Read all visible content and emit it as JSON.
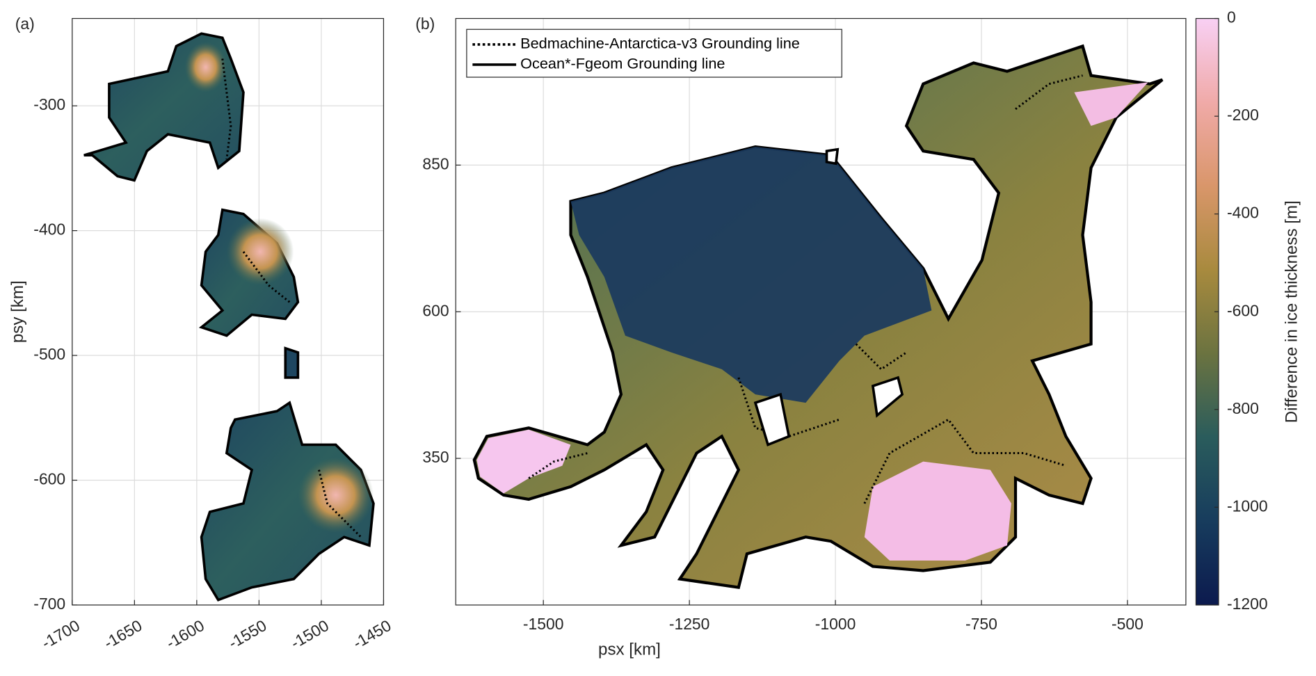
{
  "chart_data": [
    {
      "type": "map",
      "panel_label": "(a)",
      "ylabel": "psy [km]",
      "xlim": [
        -1700,
        -1450
      ],
      "ylim": [
        -700,
        -230
      ],
      "xticks": [
        -1700,
        -1650,
        -1600,
        -1550,
        -1500,
        -1450
      ],
      "xtick_rotation": -30,
      "yticks": [
        -300,
        -400,
        -500,
        -600,
        -700
      ],
      "grid": true
    },
    {
      "type": "map",
      "panel_label": "(b)",
      "xlabel": "psx [km]",
      "xlim": [
        -1650,
        -400
      ],
      "ylim": [
        100,
        1100
      ],
      "xticks": [
        -1500,
        -1250,
        -1000,
        -750,
        -500
      ],
      "yticks": [
        850,
        600,
        350
      ],
      "grid": true,
      "legend_position": "upper left",
      "legend": [
        {
          "name": "Bedmachine-Antarctica-v3 Grounding line",
          "color": "#000000",
          "dash": "dotted"
        },
        {
          "name": "Ocean*-Fgeom Grounding line",
          "color": "#000000",
          "dash": "solid"
        }
      ]
    },
    {
      "type": "colorbar",
      "label": "Difference in ice thickness [m]",
      "clim": [
        -1200,
        0
      ],
      "ticks": [
        0,
        -200,
        -400,
        -600,
        -800,
        -1000,
        -1200
      ],
      "colors": [
        "#0c1a4e",
        "#173c5d",
        "#2a5c5c",
        "#6b7340",
        "#a88a3e",
        "#d9966a",
        "#f0aaa8",
        "#f8d0f4"
      ]
    }
  ]
}
